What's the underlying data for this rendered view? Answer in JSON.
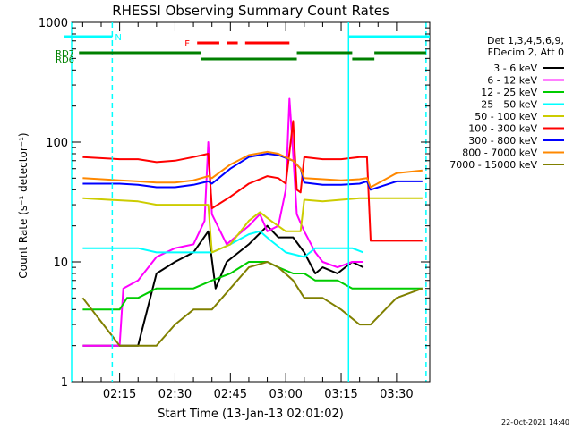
{
  "chart_data": {
    "type": "line",
    "title": "RHESSI Observing Summary Count Rates",
    "xlabel": "Start Time (13-Jan-13 02:01:02)",
    "ylabel": "Count Rate (s⁻¹ detector⁻¹)",
    "ylim": [
      1,
      1000
    ],
    "yscale": "log",
    "xlim_minutes": [
      2,
      99
    ],
    "x_ticks": [
      {
        "label": "02:15",
        "minute": 15
      },
      {
        "label": "02:30",
        "minute": 30
      },
      {
        "label": "02:45",
        "minute": 45
      },
      {
        "label": "03:00",
        "minute": 60
      },
      {
        "label": "03:15",
        "minute": 75
      },
      {
        "label": "03:30",
        "minute": 90
      }
    ],
    "y_ticks": [
      {
        "label": "1",
        "value": 1
      },
      {
        "label": "10",
        "value": 10
      },
      {
        "label": "100",
        "value": 100
      },
      {
        "label": "1000",
        "value": 1000
      }
    ],
    "legend": {
      "placement": "right",
      "header": [
        "Det 1,3,4,5,6,9,",
        "FDecim 2, Att 0"
      ]
    },
    "grid": false,
    "series": [
      {
        "name": "3 - 6 keV",
        "color": "#000000",
        "points": [
          [
            5,
            2
          ],
          [
            20,
            2
          ],
          [
            25,
            8
          ],
          [
            30,
            10
          ],
          [
            35,
            12
          ],
          [
            39,
            18
          ],
          [
            41,
            6
          ],
          [
            44,
            10
          ],
          [
            50,
            14
          ],
          [
            55,
            20
          ],
          [
            58,
            16
          ],
          [
            62,
            16
          ],
          [
            65,
            12
          ],
          [
            68,
            8
          ],
          [
            70,
            9
          ],
          [
            74,
            8
          ],
          [
            78,
            10
          ],
          [
            81,
            9
          ]
        ]
      },
      {
        "name": "6 - 12 keV",
        "color": "#ff00ff",
        "points": [
          [
            5,
            2
          ],
          [
            15,
            2
          ],
          [
            16,
            6
          ],
          [
            20,
            7
          ],
          [
            25,
            11
          ],
          [
            30,
            13
          ],
          [
            35,
            14
          ],
          [
            38,
            22
          ],
          [
            39,
            100
          ],
          [
            40,
            25
          ],
          [
            44,
            14
          ],
          [
            50,
            20
          ],
          [
            53,
            25
          ],
          [
            55,
            18
          ],
          [
            58,
            20
          ],
          [
            60,
            40
          ],
          [
            61,
            230
          ],
          [
            62,
            80
          ],
          [
            63,
            25
          ],
          [
            65,
            18
          ],
          [
            68,
            12
          ],
          [
            70,
            10
          ],
          [
            74,
            9
          ],
          [
            78,
            10
          ],
          [
            81,
            10
          ]
        ]
      },
      {
        "name": "12 - 25 keV",
        "color": "#00cc00",
        "points": [
          [
            5,
            4
          ],
          [
            15,
            4
          ],
          [
            17,
            5
          ],
          [
            20,
            5
          ],
          [
            25,
            6
          ],
          [
            30,
            6
          ],
          [
            35,
            6
          ],
          [
            40,
            7
          ],
          [
            45,
            8
          ],
          [
            50,
            10
          ],
          [
            55,
            10
          ],
          [
            58,
            9
          ],
          [
            62,
            8
          ],
          [
            65,
            8
          ],
          [
            68,
            7
          ],
          [
            74,
            7
          ],
          [
            78,
            6
          ],
          [
            81,
            6
          ],
          [
            83,
            6
          ],
          [
            90,
            6
          ],
          [
            97,
            6
          ]
        ]
      },
      {
        "name": "25 - 50 keV",
        "color": "#00ffff",
        "points": [
          [
            5,
            13
          ],
          [
            20,
            13
          ],
          [
            25,
            12
          ],
          [
            30,
            12
          ],
          [
            35,
            12
          ],
          [
            40,
            12
          ],
          [
            45,
            14
          ],
          [
            50,
            17
          ],
          [
            53,
            18
          ],
          [
            56,
            15
          ],
          [
            60,
            12
          ],
          [
            65,
            11
          ],
          [
            68,
            13
          ],
          [
            74,
            13
          ],
          [
            78,
            13
          ],
          [
            81,
            12
          ]
        ]
      },
      {
        "name": "50 - 100 keV",
        "color": "#cccc00",
        "points": [
          [
            5,
            34
          ],
          [
            20,
            32
          ],
          [
            25,
            30
          ],
          [
            30,
            30
          ],
          [
            35,
            30
          ],
          [
            39,
            30
          ],
          [
            40,
            12
          ],
          [
            45,
            14
          ],
          [
            50,
            22
          ],
          [
            53,
            26
          ],
          [
            56,
            22
          ],
          [
            60,
            18
          ],
          [
            64,
            18
          ],
          [
            65,
            33
          ],
          [
            70,
            32
          ],
          [
            75,
            33
          ],
          [
            80,
            34
          ],
          [
            82,
            34
          ],
          [
            83,
            34
          ],
          [
            90,
            34
          ],
          [
            97,
            34
          ]
        ]
      },
      {
        "name": "100 - 300 keV",
        "color": "#ff0000",
        "points": [
          [
            5,
            75
          ],
          [
            15,
            72
          ],
          [
            20,
            72
          ],
          [
            25,
            68
          ],
          [
            30,
            70
          ],
          [
            35,
            75
          ],
          [
            39,
            80
          ],
          [
            40,
            28
          ],
          [
            45,
            35
          ],
          [
            50,
            45
          ],
          [
            55,
            52
          ],
          [
            58,
            50
          ],
          [
            60,
            45
          ],
          [
            62,
            150
          ],
          [
            63,
            40
          ],
          [
            64,
            38
          ],
          [
            65,
            75
          ],
          [
            70,
            72
          ],
          [
            75,
            72
          ],
          [
            80,
            75
          ],
          [
            82,
            75
          ],
          [
            83,
            15
          ],
          [
            90,
            15
          ],
          [
            97,
            15
          ]
        ]
      },
      {
        "name": "300 - 800 keV",
        "color": "#0000ff",
        "points": [
          [
            5,
            45
          ],
          [
            15,
            45
          ],
          [
            20,
            44
          ],
          [
            25,
            42
          ],
          [
            30,
            42
          ],
          [
            35,
            44
          ],
          [
            39,
            47
          ],
          [
            40,
            45
          ],
          [
            45,
            60
          ],
          [
            50,
            75
          ],
          [
            55,
            80
          ],
          [
            58,
            78
          ],
          [
            62,
            70
          ],
          [
            64,
            60
          ],
          [
            65,
            46
          ],
          [
            70,
            44
          ],
          [
            75,
            44
          ],
          [
            80,
            45
          ],
          [
            82,
            47
          ],
          [
            83,
            40
          ],
          [
            90,
            47
          ],
          [
            97,
            47
          ]
        ]
      },
      {
        "name": "800 - 7000 keV",
        "color": "#ff8800",
        "points": [
          [
            5,
            50
          ],
          [
            15,
            48
          ],
          [
            20,
            47
          ],
          [
            25,
            46
          ],
          [
            30,
            46
          ],
          [
            35,
            48
          ],
          [
            39,
            52
          ],
          [
            40,
            50
          ],
          [
            45,
            65
          ],
          [
            50,
            78
          ],
          [
            55,
            83
          ],
          [
            58,
            80
          ],
          [
            62,
            70
          ],
          [
            64,
            60
          ],
          [
            65,
            50
          ],
          [
            70,
            49
          ],
          [
            75,
            48
          ],
          [
            80,
            49
          ],
          [
            82,
            50
          ],
          [
            83,
            42
          ],
          [
            90,
            55
          ],
          [
            97,
            58
          ]
        ]
      },
      {
        "name": "7000 - 15000 keV",
        "color": "#808000",
        "points": [
          [
            5,
            5
          ],
          [
            15,
            2
          ],
          [
            20,
            2
          ],
          [
            25,
            2
          ],
          [
            30,
            3
          ],
          [
            35,
            4
          ],
          [
            40,
            4
          ],
          [
            45,
            6
          ],
          [
            50,
            9
          ],
          [
            55,
            10
          ],
          [
            58,
            9
          ],
          [
            62,
            7
          ],
          [
            65,
            5
          ],
          [
            70,
            5
          ],
          [
            75,
            4
          ],
          [
            80,
            3
          ],
          [
            82,
            3
          ],
          [
            83,
            3
          ],
          [
            90,
            5
          ],
          [
            97,
            6
          ]
        ]
      }
    ],
    "annotations": {
      "flag_labels": [
        {
          "label": "N",
          "color": "#00ffff",
          "segments": [
            [
              0,
              13
            ],
            [
              77,
              99
            ]
          ]
        },
        {
          "label": "F",
          "color": "#ff0000",
          "segments": [
            [
              36,
              42
            ],
            [
              44,
              47
            ],
            [
              49,
              61
            ]
          ]
        },
        {
          "label": "RD7",
          "color": "#008000",
          "segments": [
            [
              4,
              37
            ],
            [
              63,
              78
            ],
            [
              84,
              98
            ]
          ]
        },
        {
          "label": "RD6",
          "color": "#008000",
          "segments": [
            [
              37,
              63
            ],
            [
              78,
              84
            ]
          ]
        }
      ],
      "vertical_lines": [
        {
          "minute": 2,
          "color": "#00ffff",
          "dashed": false
        },
        {
          "minute": 13,
          "color": "#00ffff",
          "dashed": true
        },
        {
          "minute": 77,
          "color": "#00ffff",
          "dashed": false
        },
        {
          "minute": 98,
          "color": "#00ffff",
          "dashed": true
        }
      ]
    },
    "footer_date": "22-Oct-2021 14:40"
  }
}
